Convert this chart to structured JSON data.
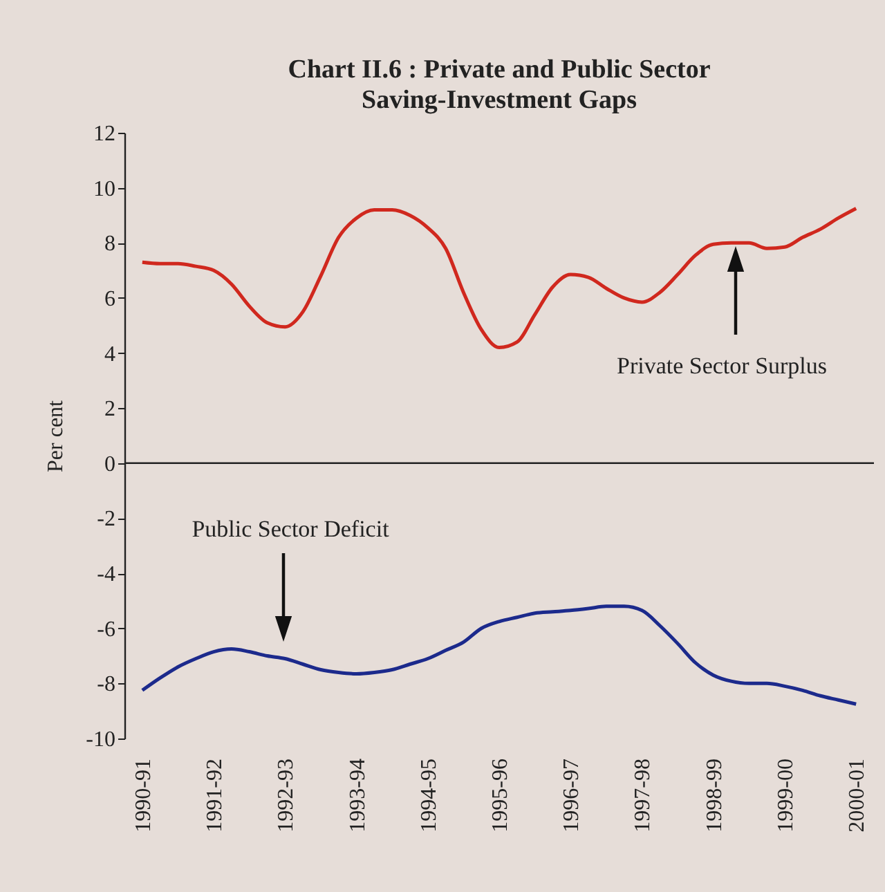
{
  "chart_data": {
    "type": "line",
    "title": "Chart II.6 : Private and Public Sector Saving-Investment Gaps",
    "ylabel": "Per cent",
    "categories": [
      "1990-91",
      null,
      null,
      null,
      "1991-92",
      null,
      null,
      null,
      "1992-93",
      null,
      null,
      null,
      "1993-94",
      null,
      null,
      null,
      "1994-95",
      null,
      null,
      null,
      "1995-96",
      null,
      null,
      null,
      "1996-97",
      null,
      null,
      null,
      "1997-98",
      null,
      null,
      null,
      "1998-99",
      null,
      null,
      null,
      "1999-00",
      null,
      null,
      null,
      "2000-01"
    ],
    "ylim": [
      -10,
      12
    ],
    "yticks": [
      -10,
      -8,
      -6,
      -4,
      -2,
      0,
      2,
      4,
      6,
      8,
      10,
      12
    ],
    "series": [
      {
        "color": "#d0281e",
        "values": [
          7.3,
          7.25,
          7.25,
          7.15,
          7.0,
          6.5,
          5.7,
          5.1,
          4.95,
          5.5,
          6.8,
          8.2,
          8.9,
          9.2,
          9.2,
          9.0,
          8.55,
          7.8,
          6.2,
          4.85,
          4.2,
          4.4,
          5.4,
          6.4,
          6.85,
          6.75,
          6.35,
          6.0,
          5.85,
          6.2,
          6.85,
          7.55,
          7.95,
          8.0,
          8.0,
          7.8,
          7.85,
          8.2,
          8.5,
          8.9,
          9.25
        ]
      },
      {
        "color": "#1c2a8c",
        "values": [
          -8.25,
          -7.8,
          -7.4,
          -7.1,
          -6.85,
          -6.75,
          -6.85,
          -7.0,
          -7.1,
          -7.3,
          -7.5,
          -7.6,
          -7.65,
          -7.6,
          -7.5,
          -7.3,
          -7.1,
          -6.8,
          -6.5,
          -6.0,
          -5.75,
          -5.6,
          -5.45,
          -5.4,
          -5.35,
          -5.28,
          -5.2,
          -5.2,
          -5.35,
          -5.9,
          -6.55,
          -7.25,
          -7.7,
          -7.92,
          -8.0,
          -8.0,
          -8.1,
          -8.25,
          -8.45,
          -8.6,
          -8.75
        ]
      }
    ],
    "ref_lines": [
      {
        "axis": "y",
        "value": 0,
        "color": "#222222"
      }
    ],
    "annotations": [
      "Private Sector Surplus",
      "Public Sector Deficit"
    ],
    "grid": false,
    "marker": "none",
    "line_style": "solid"
  }
}
